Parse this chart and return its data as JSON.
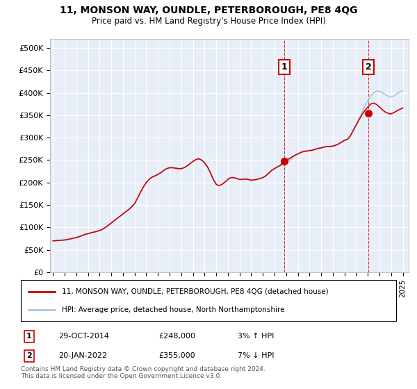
{
  "title": "11, MONSON WAY, OUNDLE, PETERBOROUGH, PE8 4QG",
  "subtitle": "Price paid vs. HM Land Registry's House Price Index (HPI)",
  "legend_line1": "11, MONSON WAY, OUNDLE, PETERBOROUGH, PE8 4QG (detached house)",
  "legend_line2": "HPI: Average price, detached house, North Northamptonshire",
  "annotation1_label": "1",
  "annotation1_date": "29-OCT-2014",
  "annotation1_price": "£248,000",
  "annotation1_hpi": "3% ↑ HPI",
  "annotation1_year": 2014.83,
  "annotation1_value": 248000,
  "annotation2_label": "2",
  "annotation2_date": "20-JAN-2022",
  "annotation2_price": "£355,000",
  "annotation2_hpi": "7% ↓ HPI",
  "annotation2_year": 2022.05,
  "annotation2_value": 355000,
  "ylim": [
    0,
    520000
  ],
  "yticks": [
    0,
    50000,
    100000,
    150000,
    200000,
    250000,
    300000,
    350000,
    400000,
    450000,
    500000
  ],
  "ytick_labels": [
    "£0",
    "£50K",
    "£100K",
    "£150K",
    "£200K",
    "£250K",
    "£300K",
    "£350K",
    "£400K",
    "£450K",
    "£500K"
  ],
  "plot_bg_color": "#e8eef8",
  "grid_color": "#ffffff",
  "hpi_color": "#aac4e8",
  "price_color": "#cc0000",
  "vline_color": "#cc0000",
  "footer": "Contains HM Land Registry data © Crown copyright and database right 2024.\nThis data is licensed under the Open Government Licence v3.0.",
  "hpi_data": [
    [
      1995.0,
      70000
    ],
    [
      1995.25,
      70500
    ],
    [
      1995.5,
      71000
    ],
    [
      1995.75,
      71500
    ],
    [
      1996.0,
      72000
    ],
    [
      1996.25,
      73000
    ],
    [
      1996.5,
      74500
    ],
    [
      1996.75,
      76000
    ],
    [
      1997.0,
      77500
    ],
    [
      1997.25,
      79500
    ],
    [
      1997.5,
      82000
    ],
    [
      1997.75,
      84500
    ],
    [
      1998.0,
      86000
    ],
    [
      1998.25,
      88000
    ],
    [
      1998.5,
      89500
    ],
    [
      1998.75,
      91000
    ],
    [
      1999.0,
      93000
    ],
    [
      1999.25,
      96000
    ],
    [
      1999.5,
      100000
    ],
    [
      1999.75,
      105000
    ],
    [
      2000.0,
      110000
    ],
    [
      2000.25,
      115000
    ],
    [
      2000.5,
      120000
    ],
    [
      2000.75,
      125000
    ],
    [
      2001.0,
      130000
    ],
    [
      2001.25,
      135000
    ],
    [
      2001.5,
      140000
    ],
    [
      2001.75,
      146000
    ],
    [
      2002.0,
      153000
    ],
    [
      2002.25,
      165000
    ],
    [
      2002.5,
      178000
    ],
    [
      2002.75,
      190000
    ],
    [
      2003.0,
      200000
    ],
    [
      2003.25,
      207000
    ],
    [
      2003.5,
      212000
    ],
    [
      2003.75,
      215000
    ],
    [
      2004.0,
      218000
    ],
    [
      2004.25,
      222000
    ],
    [
      2004.5,
      227000
    ],
    [
      2004.75,
      231000
    ],
    [
      2005.0,
      233000
    ],
    [
      2005.25,
      233000
    ],
    [
      2005.5,
      232000
    ],
    [
      2005.75,
      231000
    ],
    [
      2006.0,
      231000
    ],
    [
      2006.25,
      233000
    ],
    [
      2006.5,
      237000
    ],
    [
      2006.75,
      242000
    ],
    [
      2007.0,
      247000
    ],
    [
      2007.25,
      251000
    ],
    [
      2007.5,
      253000
    ],
    [
      2007.75,
      250000
    ],
    [
      2008.0,
      244000
    ],
    [
      2008.25,
      235000
    ],
    [
      2008.5,
      222000
    ],
    [
      2008.75,
      207000
    ],
    [
      2009.0,
      196000
    ],
    [
      2009.25,
      193000
    ],
    [
      2009.5,
      196000
    ],
    [
      2009.75,
      201000
    ],
    [
      2010.0,
      207000
    ],
    [
      2010.25,
      211000
    ],
    [
      2010.5,
      211000
    ],
    [
      2010.75,
      209000
    ],
    [
      2011.0,
      207000
    ],
    [
      2011.25,
      207000
    ],
    [
      2011.5,
      208000
    ],
    [
      2011.75,
      207000
    ],
    [
      2012.0,
      205000
    ],
    [
      2012.25,
      206000
    ],
    [
      2012.5,
      207000
    ],
    [
      2012.75,
      209000
    ],
    [
      2013.0,
      211000
    ],
    [
      2013.25,
      215000
    ],
    [
      2013.5,
      221000
    ],
    [
      2013.75,
      227000
    ],
    [
      2014.0,
      231000
    ],
    [
      2014.25,
      235000
    ],
    [
      2014.5,
      238000
    ],
    [
      2014.75,
      240000
    ],
    [
      2015.0,
      243000
    ],
    [
      2015.25,
      248000
    ],
    [
      2015.5,
      254000
    ],
    [
      2015.75,
      259000
    ],
    [
      2016.0,
      263000
    ],
    [
      2016.25,
      267000
    ],
    [
      2016.5,
      270000
    ],
    [
      2016.75,
      271000
    ],
    [
      2017.0,
      272000
    ],
    [
      2017.25,
      273000
    ],
    [
      2017.5,
      275000
    ],
    [
      2017.75,
      277000
    ],
    [
      2018.0,
      278000
    ],
    [
      2018.25,
      280000
    ],
    [
      2018.5,
      281000
    ],
    [
      2018.75,
      281000
    ],
    [
      2019.0,
      282000
    ],
    [
      2019.25,
      284000
    ],
    [
      2019.5,
      287000
    ],
    [
      2019.75,
      291000
    ],
    [
      2020.0,
      295000
    ],
    [
      2020.25,
      297000
    ],
    [
      2020.5,
      305000
    ],
    [
      2020.75,
      318000
    ],
    [
      2021.0,
      330000
    ],
    [
      2021.25,
      343000
    ],
    [
      2021.5,
      357000
    ],
    [
      2021.75,
      371000
    ],
    [
      2022.0,
      383000
    ],
    [
      2022.25,
      393000
    ],
    [
      2022.5,
      400000
    ],
    [
      2022.75,
      404000
    ],
    [
      2023.0,
      403000
    ],
    [
      2023.25,
      400000
    ],
    [
      2023.5,
      396000
    ],
    [
      2023.75,
      392000
    ],
    [
      2024.0,
      390000
    ],
    [
      2024.25,
      393000
    ],
    [
      2024.5,
      398000
    ],
    [
      2024.75,
      402000
    ],
    [
      2025.0,
      405000
    ]
  ],
  "price_data": [
    [
      1995.0,
      70000
    ],
    [
      1995.25,
      70500
    ],
    [
      1995.5,
      71000
    ],
    [
      1995.75,
      71500
    ],
    [
      1996.0,
      72000
    ],
    [
      1996.25,
      73000
    ],
    [
      1996.5,
      74500
    ],
    [
      1996.75,
      76000
    ],
    [
      1997.0,
      77500
    ],
    [
      1997.25,
      79500
    ],
    [
      1997.5,
      82000
    ],
    [
      1997.75,
      84500
    ],
    [
      1998.0,
      86000
    ],
    [
      1998.25,
      88000
    ],
    [
      1998.5,
      89500
    ],
    [
      1998.75,
      91000
    ],
    [
      1999.0,
      93000
    ],
    [
      1999.25,
      96000
    ],
    [
      1999.5,
      100000
    ],
    [
      1999.75,
      105000
    ],
    [
      2000.0,
      110000
    ],
    [
      2000.25,
      115000
    ],
    [
      2000.5,
      120000
    ],
    [
      2000.75,
      125000
    ],
    [
      2001.0,
      130000
    ],
    [
      2001.25,
      135000
    ],
    [
      2001.5,
      140000
    ],
    [
      2001.75,
      146000
    ],
    [
      2002.0,
      153000
    ],
    [
      2002.25,
      165000
    ],
    [
      2002.5,
      178000
    ],
    [
      2002.75,
      190000
    ],
    [
      2003.0,
      200000
    ],
    [
      2003.25,
      207000
    ],
    [
      2003.5,
      212000
    ],
    [
      2003.75,
      215000
    ],
    [
      2004.0,
      218000
    ],
    [
      2004.25,
      222000
    ],
    [
      2004.5,
      227000
    ],
    [
      2004.75,
      231000
    ],
    [
      2005.0,
      233000
    ],
    [
      2005.25,
      233000
    ],
    [
      2005.5,
      232000
    ],
    [
      2005.75,
      231000
    ],
    [
      2006.0,
      231000
    ],
    [
      2006.25,
      233000
    ],
    [
      2006.5,
      237000
    ],
    [
      2006.75,
      242000
    ],
    [
      2007.0,
      247000
    ],
    [
      2007.25,
      251000
    ],
    [
      2007.5,
      253000
    ],
    [
      2007.75,
      250000
    ],
    [
      2008.0,
      244000
    ],
    [
      2008.25,
      235000
    ],
    [
      2008.5,
      222000
    ],
    [
      2008.75,
      207000
    ],
    [
      2009.0,
      196000
    ],
    [
      2009.25,
      193000
    ],
    [
      2009.5,
      196000
    ],
    [
      2009.75,
      201000
    ],
    [
      2010.0,
      207000
    ],
    [
      2010.25,
      211000
    ],
    [
      2010.5,
      211000
    ],
    [
      2010.75,
      209000
    ],
    [
      2011.0,
      207000
    ],
    [
      2011.25,
      207000
    ],
    [
      2011.5,
      208000
    ],
    [
      2011.75,
      207000
    ],
    [
      2012.0,
      205000
    ],
    [
      2012.25,
      206000
    ],
    [
      2012.5,
      207000
    ],
    [
      2012.75,
      209000
    ],
    [
      2013.0,
      211000
    ],
    [
      2013.25,
      215000
    ],
    [
      2013.5,
      221000
    ],
    [
      2013.75,
      227000
    ],
    [
      2014.0,
      231000
    ],
    [
      2014.25,
      235000
    ],
    [
      2014.5,
      238000
    ],
    [
      2014.75,
      248000
    ],
    [
      2015.0,
      250000
    ],
    [
      2015.25,
      253000
    ],
    [
      2015.5,
      257000
    ],
    [
      2015.75,
      261000
    ],
    [
      2016.0,
      264000
    ],
    [
      2016.25,
      267000
    ],
    [
      2016.5,
      269000
    ],
    [
      2016.75,
      270000
    ],
    [
      2017.0,
      271000
    ],
    [
      2017.25,
      272000
    ],
    [
      2017.5,
      274000
    ],
    [
      2017.75,
      276000
    ],
    [
      2018.0,
      277000
    ],
    [
      2018.25,
      279000
    ],
    [
      2018.5,
      280000
    ],
    [
      2018.75,
      280000
    ],
    [
      2019.0,
      281000
    ],
    [
      2019.25,
      283000
    ],
    [
      2019.5,
      286000
    ],
    [
      2019.75,
      290000
    ],
    [
      2020.0,
      294000
    ],
    [
      2020.25,
      296000
    ],
    [
      2020.5,
      304000
    ],
    [
      2020.75,
      316000
    ],
    [
      2021.0,
      328000
    ],
    [
      2021.25,
      340000
    ],
    [
      2021.5,
      351000
    ],
    [
      2021.75,
      361000
    ],
    [
      2022.0,
      368000
    ],
    [
      2022.25,
      375000
    ],
    [
      2022.5,
      377000
    ],
    [
      2022.75,
      374000
    ],
    [
      2023.0,
      368000
    ],
    [
      2023.25,
      362000
    ],
    [
      2023.5,
      357000
    ],
    [
      2023.75,
      354000
    ],
    [
      2024.0,
      353000
    ],
    [
      2024.25,
      356000
    ],
    [
      2024.5,
      360000
    ],
    [
      2024.75,
      363000
    ],
    [
      2025.0,
      366000
    ]
  ]
}
